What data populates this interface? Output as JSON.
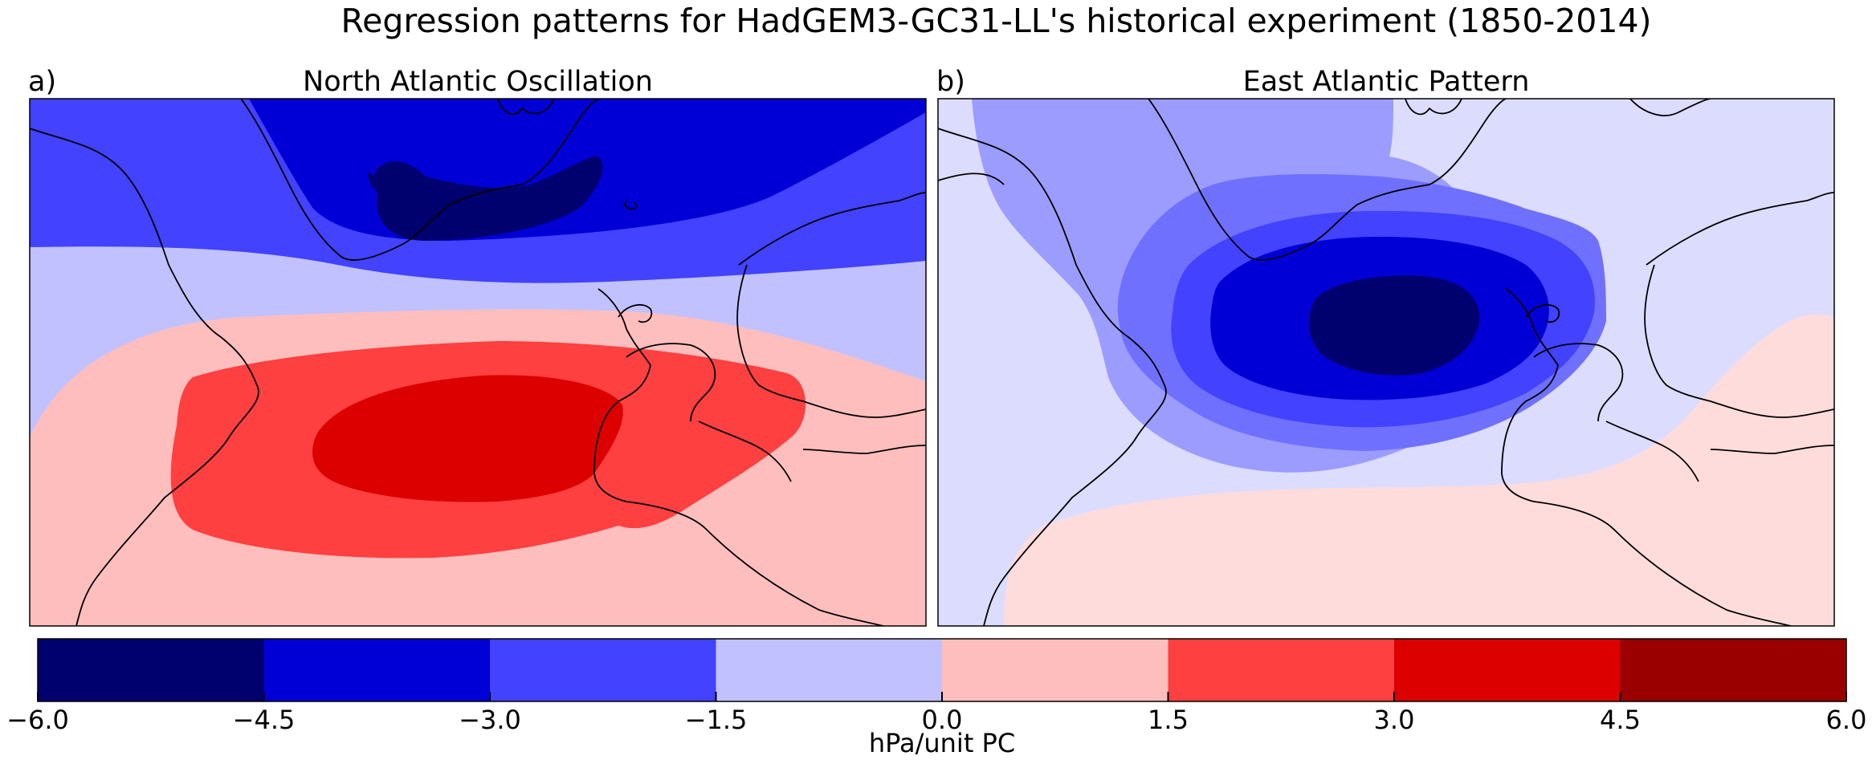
{
  "figure": {
    "title": "Regression patterns for HadGEM3-GC31-LL's historical experiment (1850-2014)"
  },
  "panels": [
    {
      "label": "a)",
      "title": "North Atlantic Oscillation"
    },
    {
      "label": "b)",
      "title": "East Atlantic Pattern"
    }
  ],
  "colorbar": {
    "label": "hPa/unit PC",
    "ticks": [
      "−6.0",
      "−4.5",
      "−3.0",
      "−1.5",
      "0.0",
      "1.5",
      "3.0",
      "4.5",
      "6.0"
    ],
    "levels": [
      -6.0,
      -4.5,
      -3.0,
      -1.5,
      0.0,
      1.5,
      3.0,
      4.5,
      6.0
    ],
    "colors": [
      "#00006f",
      "#0000d6",
      "#4242ff",
      "#c1c1ff",
      "#ffbebe",
      "#ff4040",
      "#dd0000",
      "#9a0000"
    ]
  },
  "chart_data": [
    {
      "type": "heatmap",
      "title": "North Atlantic Oscillation",
      "panel_label": "a)",
      "units": "hPa/unit PC",
      "levels": [
        -6.0,
        -4.5,
        -3.0,
        -1.5,
        0.0,
        1.5,
        3.0,
        4.5,
        6.0
      ],
      "pattern": "dipole",
      "features": [
        {
          "sign": "negative",
          "location": "Greenland / Iceland",
          "max_band": [
            -6.0,
            -4.5
          ]
        },
        {
          "sign": "positive",
          "location": "central North Atlantic / Azores",
          "max_band": [
            3.0,
            4.5
          ]
        }
      ]
    },
    {
      "type": "heatmap",
      "title": "East Atlantic Pattern",
      "panel_label": "b)",
      "units": "hPa/unit PC",
      "levels": [
        -6.0,
        -4.5,
        -3.0,
        -1.5,
        0.0,
        1.5,
        3.0,
        4.5,
        6.0
      ],
      "pattern": "monopole",
      "features": [
        {
          "sign": "negative",
          "location": "west of British Isles",
          "max_band": [
            -6.0,
            -4.5
          ]
        },
        {
          "sign": "positive",
          "location": "subtropical Atlantic / North Africa",
          "max_band": [
            0.0,
            1.5
          ]
        }
      ]
    }
  ]
}
